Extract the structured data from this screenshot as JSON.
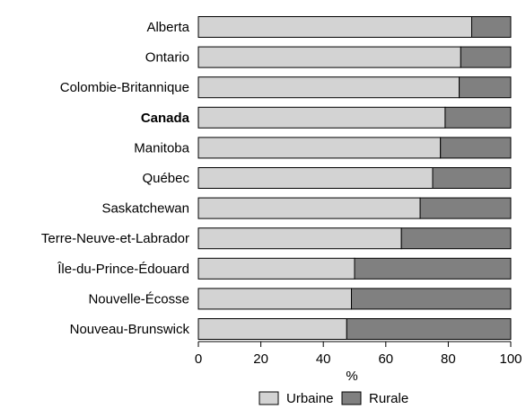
{
  "chart_data": {
    "type": "bar",
    "orientation": "horizontal",
    "stacked": true,
    "categories": [
      "Alberta",
      "Ontario",
      "Colombie-Britannique",
      "Canada",
      "Manitoba",
      "Québec",
      "Saskatchewan",
      "Terre-Neuve-et-Labrador",
      "Île-du-Prince-Édouard",
      "Nouvelle-Écosse",
      "Nouveau-Brunswick"
    ],
    "emphasized_category": "Canada",
    "series": [
      {
        "name": "Urbaine",
        "color": "#d3d3d3",
        "values": [
          87.5,
          84,
          83.5,
          79,
          77.5,
          75,
          71,
          65,
          50,
          49,
          47.5
        ]
      },
      {
        "name": "Rurale",
        "color": "#808080",
        "values": [
          12.5,
          16,
          16.5,
          21,
          22.5,
          25,
          29,
          35,
          50,
          51,
          52.5
        ]
      }
    ],
    "xlabel": "%",
    "xlim": [
      0,
      100
    ],
    "xticks": [
      "0",
      "20",
      "40",
      "60",
      "80",
      "100"
    ],
    "grid": false,
    "legend_position": "bottom"
  }
}
